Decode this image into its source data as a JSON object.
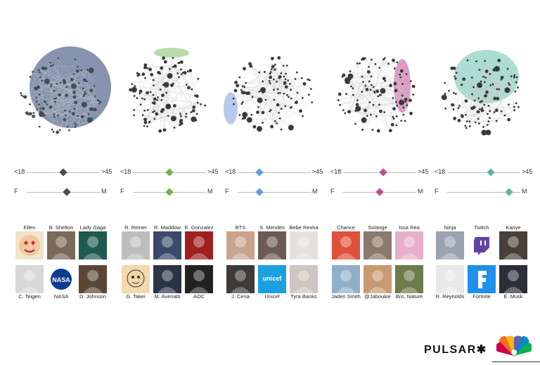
{
  "panels": [
    {
      "id": "p1",
      "color": "#5f6f94",
      "dot": "#3d4f57",
      "age": {
        "left": "<18",
        "right": ">45",
        "value": 0.5
      },
      "gender": {
        "left": "F",
        "right": "M",
        "value": 0.55
      },
      "top_accounts": [
        {
          "name": "Ellen",
          "icon": "heart-eyes-emoji-icon",
          "bg": "#f1e4c8"
        },
        {
          "name": "B. Shelton",
          "icon": "portrait-icon",
          "bg": "#7a6a58"
        },
        {
          "name": "Lady Gaga",
          "icon": "portrait-icon",
          "bg": "#1f5a4e"
        }
      ],
      "bottom_accounts": [
        {
          "name": "C. Teigen",
          "icon": "portrait-icon",
          "bg": "#d8d8d8"
        },
        {
          "name": "NASA",
          "icon": "nasa-logo-icon",
          "bg": "#0b3d91"
        },
        {
          "name": "D. Johnson",
          "icon": "portrait-icon",
          "bg": "#5b4636"
        }
      ]
    },
    {
      "id": "p2",
      "color": "#9fd08a",
      "dot": "#3a3a3a",
      "age": {
        "left": "<18",
        "right": ">45",
        "value": 0.5
      },
      "gender": {
        "left": "F",
        "right": "M",
        "value": 0.5
      },
      "top_accounts": [
        {
          "name": "R. Reiner",
          "icon": "portrait-icon",
          "bg": "#bdbdbd"
        },
        {
          "name": "R. Maddow",
          "icon": "portrait-icon",
          "bg": "#3a4a6a"
        },
        {
          "name": "E. Gonzalez",
          "icon": "portrait-icon",
          "bg": "#a02020"
        }
      ],
      "bottom_accounts": [
        {
          "name": "G. Takei",
          "icon": "cartoon-face-icon",
          "bg": "#f4d9b0"
        },
        {
          "name": "M. Avenatti",
          "icon": "portrait-icon",
          "bg": "#2b3446"
        },
        {
          "name": "AOC",
          "icon": "portrait-icon",
          "bg": "#222222"
        }
      ]
    },
    {
      "id": "p3",
      "color": "#9fb8e8",
      "dot": "#3a3a3a",
      "age": {
        "left": "<18",
        "right": ">45",
        "value": 0.3
      },
      "gender": {
        "left": "F",
        "right": "M",
        "value": 0.3
      },
      "top_accounts": [
        {
          "name": "BTS",
          "icon": "group-photo-icon",
          "bg": "#c9a48a"
        },
        {
          "name": "S. Mendes",
          "icon": "portrait-icon",
          "bg": "#6a5c52"
        },
        {
          "name": "Bebe Rexha",
          "icon": "portrait-icon",
          "bg": "#e6e0da"
        }
      ],
      "bottom_accounts": [
        {
          "name": "J. Cena",
          "icon": "portrait-icon",
          "bg": "#3d3a38"
        },
        {
          "name": "Unicef",
          "icon": "unicef-logo-icon",
          "bg": "#1ca0e0"
        },
        {
          "name": "Tyra Banks",
          "icon": "portrait-icon",
          "bg": "#cfc6bf"
        }
      ]
    },
    {
      "id": "p4",
      "color": "#d47ab0",
      "dot": "#3a3a3a",
      "age": {
        "left": "<18",
        "right": ">45",
        "value": 0.55
      },
      "gender": {
        "left": "F",
        "right": "M",
        "value": 0.5
      },
      "top_accounts": [
        {
          "name": "Chance",
          "icon": "portrait-icon",
          "bg": "#e0503a"
        },
        {
          "name": "Solange",
          "icon": "portrait-icon",
          "bg": "#8a7a6c"
        },
        {
          "name": "Issa Rea",
          "icon": "portrait-icon",
          "bg": "#e6b0c8"
        }
      ],
      "bottom_accounts": [
        {
          "name": "Jaden Smith",
          "icon": "portrait-icon",
          "bg": "#8fb0c8"
        },
        {
          "name": "@Jaboukie",
          "icon": "portrait-icon",
          "bg": "#c89a72"
        },
        {
          "name": "Bro. Nature",
          "icon": "portrait-icon",
          "bg": "#6e7a4a"
        }
      ]
    },
    {
      "id": "p5",
      "color": "#8fd3c3",
      "dot": "#3a3a3a",
      "age": {
        "left": "<18",
        "right": ">45",
        "value": 0.6
      },
      "gender": {
        "left": "F",
        "right": "M",
        "value": 0.85
      },
      "top_accounts": [
        {
          "name": "Ninja",
          "icon": "portrait-icon",
          "bg": "#9aa4b0"
        },
        {
          "name": "Twitch",
          "icon": "twitch-logo-icon",
          "bg": "#ffffff"
        },
        {
          "name": "Kanye",
          "icon": "portrait-icon",
          "bg": "#4a4038"
        }
      ],
      "bottom_accounts": [
        {
          "name": "R. Reynolds",
          "icon": "portrait-icon",
          "bg": "#e8e8e8"
        },
        {
          "name": "Fortnite",
          "icon": "fortnite-logo-icon",
          "bg": "#1e90e8"
        },
        {
          "name": "E. Musk",
          "icon": "portrait-icon",
          "bg": "#2a2f38"
        }
      ]
    }
  ],
  "logos": {
    "pulsar": "PULSAR✱",
    "nbc": "nbc-peacock-icon"
  }
}
